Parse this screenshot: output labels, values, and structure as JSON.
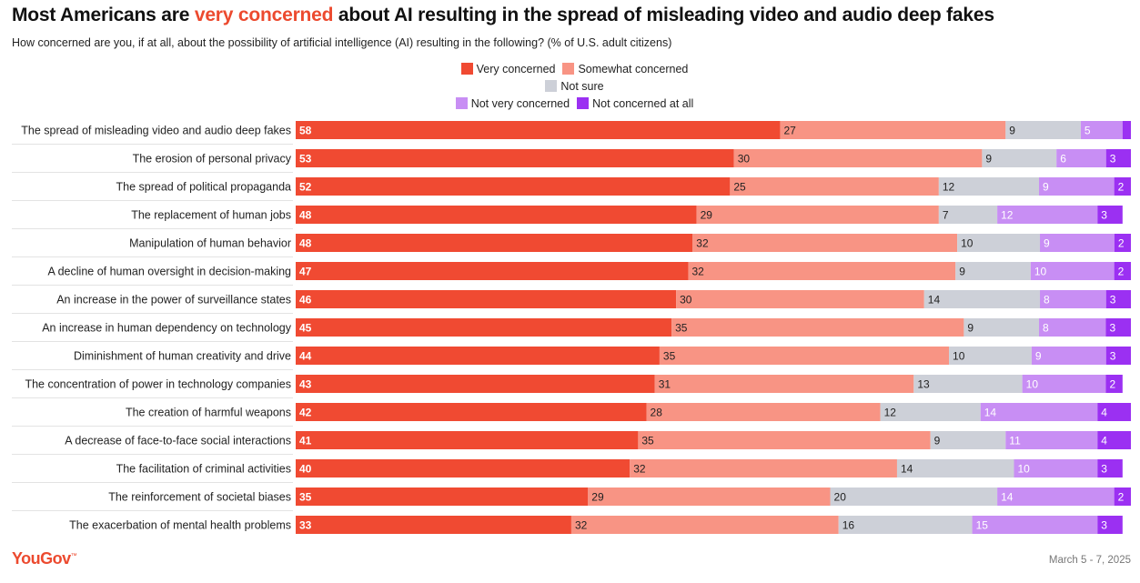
{
  "title_parts": {
    "before": "Most Americans are ",
    "highlight": "very concerned",
    "after": " about AI resulting in the spread of misleading video and audio deep fakes"
  },
  "subtitle": "How concerned are you, if at all, about the possibility of artificial intelligence (AI) resulting in the following? (% of U.S. adult citizens)",
  "footer": {
    "logo": "YouGov",
    "date": "March 5 - 7, 2025"
  },
  "chart_data": {
    "type": "bar",
    "stacked": true,
    "orientation": "horizontal",
    "title": "Most Americans are very concerned about AI resulting in the spread of misleading video and audio deep fakes",
    "categories": [
      "The spread of misleading video and audio deep fakes",
      "The erosion of personal privacy",
      "The spread of political propaganda",
      "The replacement of human jobs",
      "Manipulation of human behavior",
      "A decline of human oversight in decision-making",
      "An increase in the power of surveillance states",
      "An increase in human dependency on technology",
      "Diminishment of human creativity and drive",
      "The concentration of power in technology companies",
      "The creation of harmful weapons",
      "A decrease of face-to-face social interactions",
      "The facilitation of criminal activities",
      "The reinforcement of societal biases",
      "The exacerbation of mental health problems"
    ],
    "series": [
      {
        "name": "Very concerned",
        "color": "#f04a32",
        "label_color": "#ffffff",
        "values": [
          58,
          53,
          52,
          48,
          48,
          47,
          46,
          45,
          44,
          43,
          42,
          41,
          40,
          35,
          33
        ]
      },
      {
        "name": "Somewhat concerned",
        "color": "#f89484",
        "label_color": "#222222",
        "values": [
          27,
          30,
          25,
          29,
          32,
          32,
          30,
          35,
          35,
          31,
          28,
          35,
          32,
          29,
          32
        ]
      },
      {
        "name": "Not sure",
        "color": "#cdd0d8",
        "label_color": "#222222",
        "values": [
          9,
          9,
          12,
          7,
          10,
          9,
          14,
          9,
          10,
          13,
          12,
          9,
          14,
          20,
          16
        ]
      },
      {
        "name": "Not very concerned",
        "color": "#c88ef4",
        "label_color": "#ffffff",
        "values": [
          5,
          6,
          9,
          12,
          9,
          10,
          8,
          8,
          9,
          10,
          14,
          11,
          10,
          14,
          15
        ]
      },
      {
        "name": "Not concerned at all",
        "color": "#9b30f2",
        "label_color": "#ffffff",
        "values": [
          1,
          3,
          2,
          3,
          2,
          2,
          3,
          3,
          3,
          2,
          4,
          4,
          3,
          2,
          3
        ],
        "labels": [
          "",
          "3",
          "2",
          "3",
          "2",
          "2",
          "3",
          "3",
          "3",
          "2",
          "4",
          "4",
          "3",
          "2",
          "3"
        ]
      }
    ],
    "xlim": [
      0,
      100
    ],
    "legend_position": "top-center",
    "grid": false
  }
}
